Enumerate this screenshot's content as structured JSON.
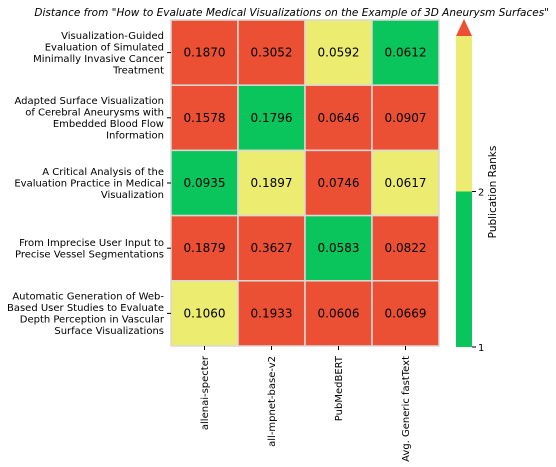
{
  "chart_data": {
    "type": "heatmap",
    "title": "Distance from \"How to Evaluate Medical Visualizations on the Example of 3D Aneurysm Surfaces\"",
    "rows": [
      "Visualization-Guided\nEvaluation of Simulated\nMinimally Invasive Cancer\nTreatment",
      "Adapted Surface Visualization\nof Cerebral Aneurysms with\nEmbedded Blood Flow\nInformation",
      "A Critical Analysis of the\nEvaluation Practice in Medical\nVisualization",
      "From Imprecise User Input to\nPrecise Vessel Segmentations",
      "Automatic Generation of Web-\nBased User Studies to Evaluate\nDepth Perception in Vascular\nSurface Visualizations"
    ],
    "columns": [
      "allenai-specter",
      "all-mpnet-base-v2",
      "PubMedBERT",
      "Avg. Generic fastText"
    ],
    "values": [
      [
        0.187,
        0.3052,
        0.0592,
        0.0612
      ],
      [
        0.1578,
        0.1796,
        0.0646,
        0.0907
      ],
      [
        0.0935,
        0.1897,
        0.0746,
        0.0617
      ],
      [
        0.1879,
        0.3627,
        0.0583,
        0.0822
      ],
      [
        0.106,
        0.1933,
        0.0606,
        0.0669
      ]
    ],
    "value_labels": [
      [
        "0.1870",
        "0.3052",
        "0.0592",
        "0.0612"
      ],
      [
        "0.1578",
        "0.1796",
        "0.0646",
        "0.0907"
      ],
      [
        "0.0935",
        "0.1897",
        "0.0746",
        "0.0617"
      ],
      [
        "0.1879",
        "0.3627",
        "0.0583",
        "0.0822"
      ],
      [
        "0.1060",
        "0.1933",
        "0.0606",
        "0.0669"
      ]
    ],
    "ranks": [
      [
        3,
        3,
        2,
        1
      ],
      [
        3,
        1,
        3,
        3
      ],
      [
        1,
        2,
        3,
        2
      ],
      [
        3,
        3,
        1,
        3
      ],
      [
        2,
        3,
        3,
        3
      ]
    ],
    "rank_colors": {
      "1": "#0ac45c",
      "2": "#ecec70",
      "3": "#ec5034"
    },
    "colorbar": {
      "label": "Publication Ranks",
      "ticks": [
        "1",
        "2"
      ],
      "range": [
        1,
        3
      ],
      "extend": "max"
    }
  }
}
